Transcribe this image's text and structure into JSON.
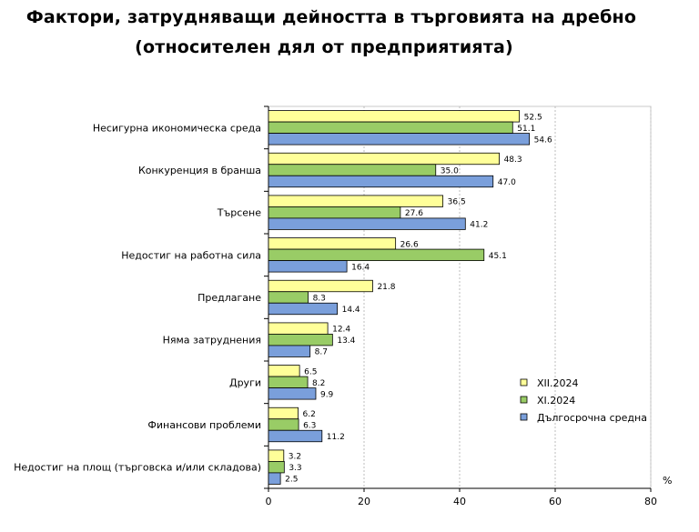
{
  "chart_data": {
    "type": "bar",
    "orientation": "horizontal",
    "title": "Фактори, затрудняващи дейността в търговията на дребно",
    "subtitle": "(относителен дял от предприятията)",
    "xlabel": "%",
    "xlim": [
      0,
      80
    ],
    "xticks": [
      "0",
      "20",
      "40",
      "60",
      "80"
    ],
    "xtick_values": [
      0,
      20,
      40,
      60,
      80
    ],
    "categories": [
      "Несигурна икономическа среда",
      "Конкуренция в бранша",
      "Търсене",
      "Недостиг на работна сила",
      "Предлагане",
      "Няма затруднения",
      "Други",
      "Финансови проблеми",
      "Недостиг на площ (търговска и/или складова)"
    ],
    "series": [
      {
        "name": "XII.2024",
        "color": "#ffff99",
        "values": [
          52.5,
          48.3,
          36.5,
          26.6,
          21.8,
          12.4,
          6.5,
          6.2,
          3.2
        ],
        "labels": [
          "52.5",
          "48.3",
          "36.5",
          "26.6",
          "21.8",
          "12.4",
          "6.5",
          "6.2",
          "3.2"
        ]
      },
      {
        "name": "XI.2024",
        "color": "#99cc66",
        "values": [
          51.1,
          35.0,
          27.6,
          45.1,
          8.3,
          13.4,
          8.2,
          6.3,
          3.3
        ],
        "labels": [
          "51.1",
          "35.0",
          "27.6",
          "45.1",
          "8.3",
          "13.4",
          "8.2",
          "6.3",
          "3.3"
        ]
      },
      {
        "name": "Дългосрочна средна",
        "color": "#7a9fdb",
        "values": [
          54.6,
          47.0,
          41.2,
          16.4,
          14.4,
          8.7,
          9.9,
          11.2,
          2.5
        ],
        "labels": [
          "54.6",
          "47.0",
          "41.2",
          "16.4",
          "14.4",
          "8.7",
          "9.9",
          "11.2",
          "2.5"
        ]
      }
    ],
    "grid": "vertical dashed",
    "legend_position": "bottom-right"
  }
}
